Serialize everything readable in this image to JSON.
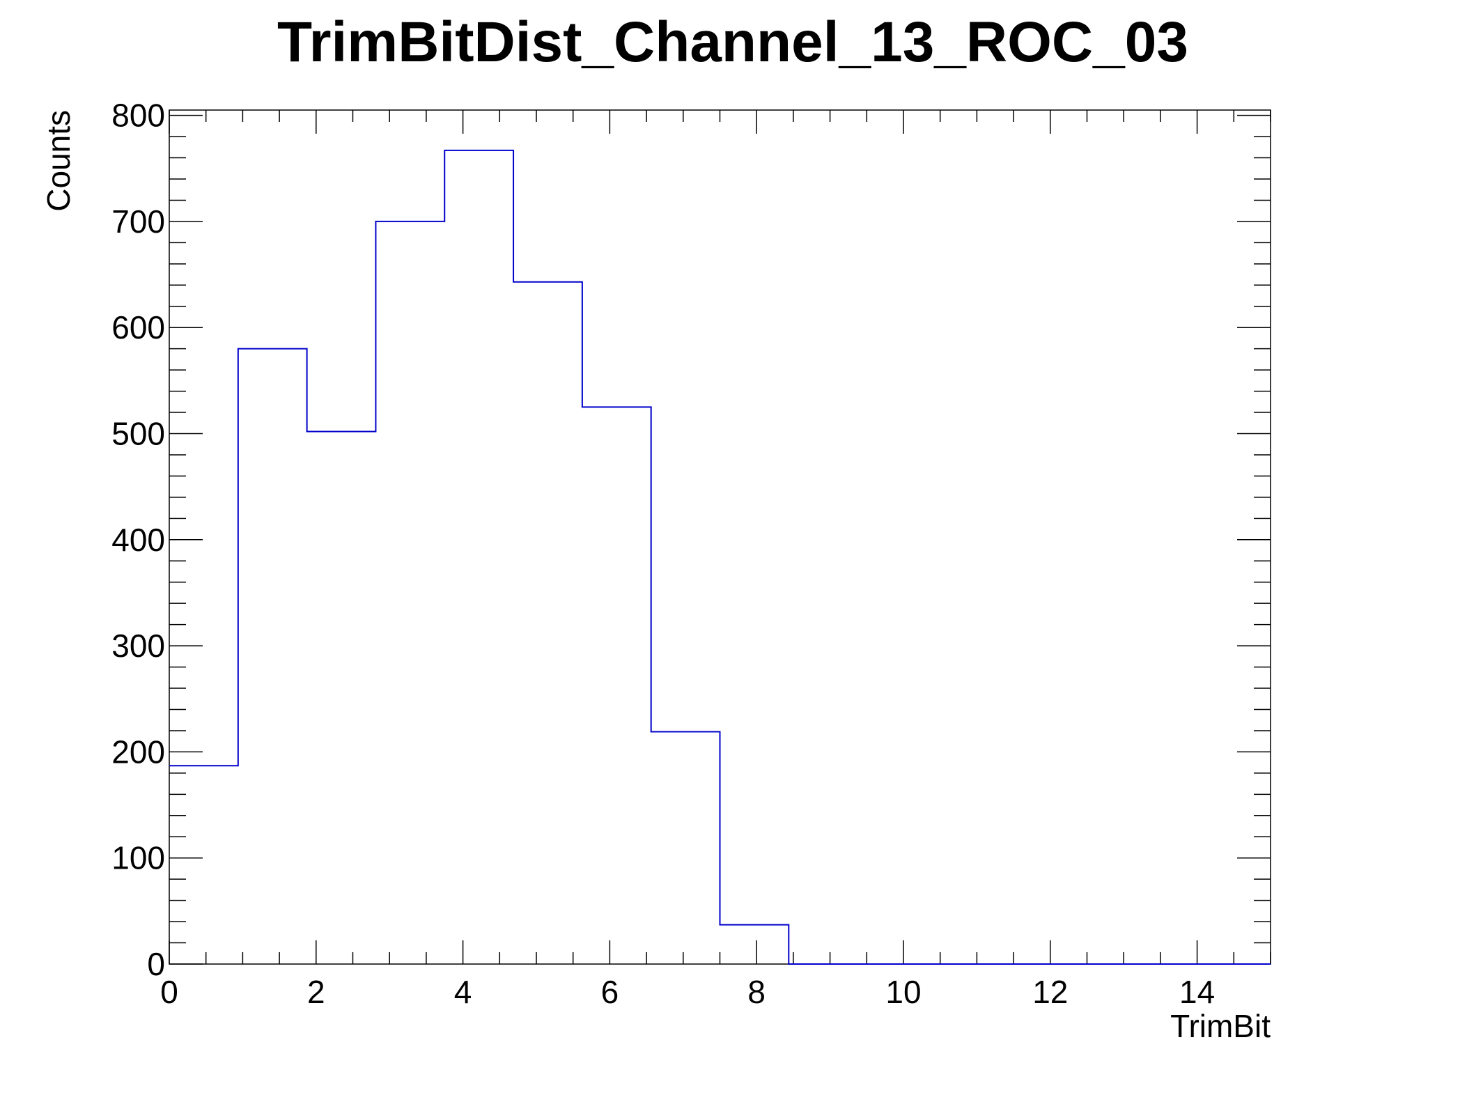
{
  "chart_data": {
    "type": "bar",
    "title": "TrimBitDist_Channel_13_ROC_03",
    "xlabel": "TrimBit",
    "ylabel": "Counts",
    "xlim": [
      0,
      15
    ],
    "ylim": [
      0,
      805
    ],
    "bin_edges": [
      0,
      0.9375,
      1.875,
      2.8125,
      3.75,
      4.6875,
      5.625,
      6.5625,
      7.5,
      8.4375,
      9.375,
      10.3125,
      11.25,
      12.1875,
      13.125,
      14.0625,
      15
    ],
    "values": [
      187,
      580,
      502,
      700,
      767,
      643,
      525,
      219,
      37,
      0,
      0,
      0,
      0,
      0,
      0,
      0
    ],
    "x_ticks": [
      0,
      2,
      4,
      6,
      8,
      10,
      12,
      14
    ],
    "y_ticks": [
      0,
      100,
      200,
      300,
      400,
      500,
      600,
      700,
      800
    ],
    "x_tick_labels": [
      "0",
      "2",
      "4",
      "6",
      "8",
      "10",
      "12",
      "14"
    ],
    "y_tick_labels": [
      "0",
      "100",
      "200",
      "300",
      "400",
      "500",
      "600",
      "700",
      "800"
    ],
    "grid": false,
    "legend": "none",
    "colors": {
      "line": "#0000cc",
      "frame": "#000000",
      "background": "#ffffff"
    }
  }
}
